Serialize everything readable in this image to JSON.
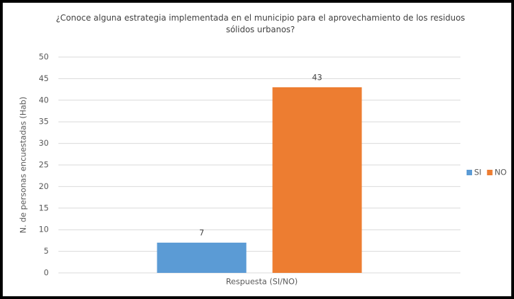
{
  "chart_data": {
    "type": "bar",
    "title": "¿Conoce alguna estrategia implementada en el municipio para el aprovechamiento de los residuos sólidos urbanos?",
    "xlabel": "Respuesta (SI/NO)",
    "ylabel": "N. de personas encuestadas (Hab)",
    "categories": [
      null
    ],
    "series": [
      {
        "name": "SI",
        "color": "#5b9bd5",
        "values": [
          7
        ]
      },
      {
        "name": "NO",
        "color": "#ed7d31",
        "values": [
          43
        ]
      }
    ],
    "ylim": [
      0,
      50
    ],
    "yticks": [
      0,
      5,
      10,
      15,
      20,
      25,
      30,
      35,
      40,
      45,
      50
    ],
    "grid": true,
    "legend": "right"
  }
}
